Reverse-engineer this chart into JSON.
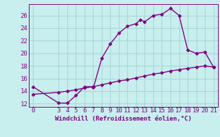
{
  "xlabel": "Windchill (Refroidissement éolien,°C)",
  "background_color": "#c8eeee",
  "line_color": "#800080",
  "grid_color": "#a8d8d8",
  "xlim": [
    -0.5,
    21.5
  ],
  "ylim": [
    11.5,
    27.8
  ],
  "xticks": [
    0,
    3,
    4,
    5,
    6,
    7,
    8,
    9,
    10,
    11,
    12,
    13,
    14,
    15,
    16,
    17,
    18,
    19,
    20,
    21
  ],
  "yticks": [
    12,
    14,
    16,
    18,
    20,
    22,
    24,
    26
  ],
  "curve1_x": [
    0,
    3,
    4,
    5,
    6,
    7,
    7.05,
    8,
    9,
    10,
    11,
    12,
    12.5,
    13,
    14,
    15,
    16,
    17,
    18,
    19,
    20,
    21
  ],
  "curve1_y": [
    14.7,
    12.1,
    12.1,
    13.3,
    14.7,
    14.7,
    14.6,
    19.2,
    21.5,
    23.2,
    24.3,
    24.7,
    25.3,
    25.0,
    26.0,
    26.2,
    27.1,
    26.0,
    20.5,
    20.0,
    20.2,
    17.8
  ],
  "curve2_x": [
    0,
    3,
    4,
    5,
    6,
    7,
    8,
    9,
    10,
    11,
    12,
    13,
    14,
    15,
    16,
    17,
    18,
    19,
    20,
    21
  ],
  "curve2_y": [
    13.5,
    13.8,
    14.0,
    14.2,
    14.5,
    14.7,
    15.0,
    15.3,
    15.6,
    15.8,
    16.1,
    16.4,
    16.7,
    16.9,
    17.2,
    17.4,
    17.6,
    17.8,
    18.0,
    17.8
  ],
  "marker": "D",
  "markersize": 2.5,
  "linewidth": 1.0,
  "tick_fontsize": 6.5,
  "xlabel_fontsize": 6.5
}
